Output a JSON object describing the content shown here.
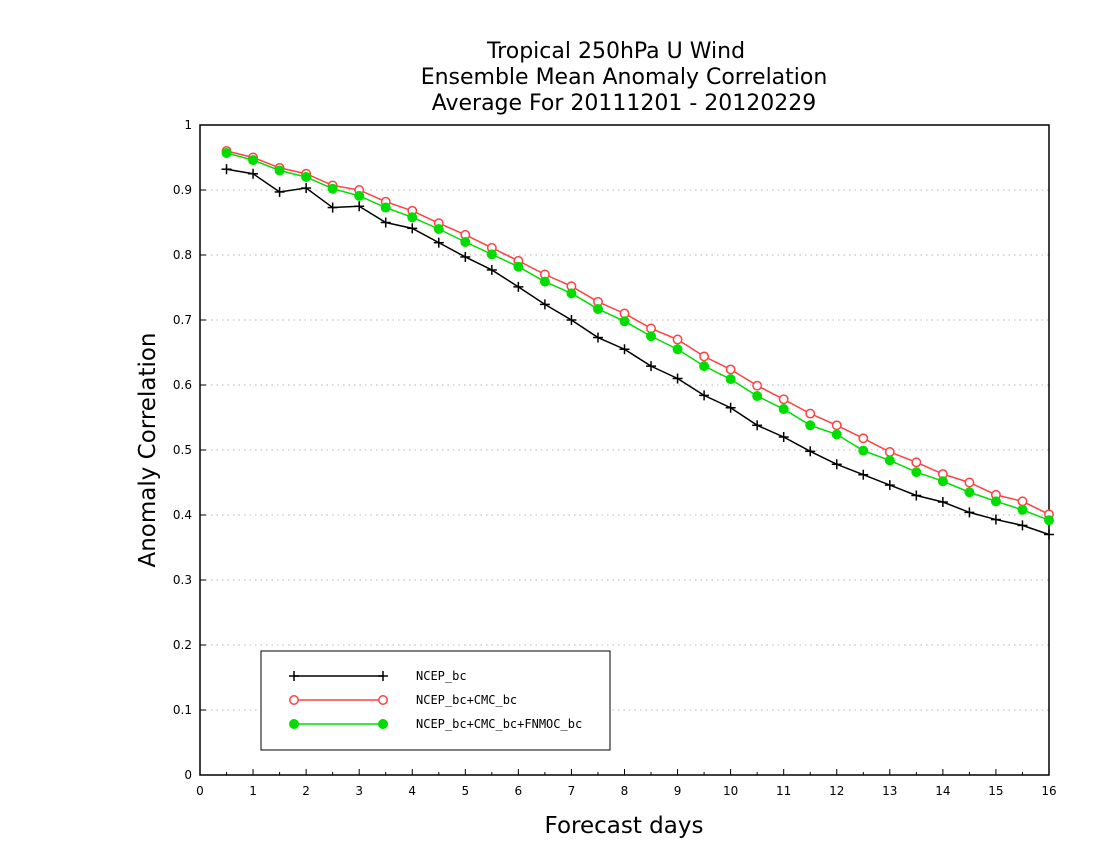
{
  "chart_data": {
    "type": "line",
    "title_lines": [
      "Tropical 250hPa U Wind",
      "Ensemble Mean Anomaly Correlation",
      "Average For 20111201 - 20120229"
    ],
    "xlabel": "Forecast days",
    "ylabel": "Anomaly Correlation",
    "xlim": [
      0,
      16
    ],
    "ylim": [
      0,
      1
    ],
    "xticks": [
      "0",
      "1",
      "2",
      "3",
      "4",
      "5",
      "6",
      "7",
      "8",
      "9",
      "10",
      "11",
      "12",
      "13",
      "14",
      "15",
      "16"
    ],
    "yticks": [
      "0",
      "0.1",
      "0.2",
      "0.3",
      "0.4",
      "0.5",
      "0.6",
      "0.7",
      "0.8",
      "0.9",
      "1"
    ],
    "grid": "horizontal dotted",
    "legend_placement": "bottom-left",
    "x": [
      0.5,
      1,
      1.5,
      2,
      2.5,
      3,
      3.5,
      4,
      4.5,
      5,
      5.5,
      6,
      6.5,
      7,
      7.5,
      8,
      8.5,
      9,
      9.5,
      10,
      10.5,
      11,
      11.5,
      12,
      12.5,
      13,
      13.5,
      14,
      14.5,
      15,
      15.5,
      16
    ],
    "series": [
      {
        "name": "NCEP_bc",
        "color": "#000000",
        "marker": "plus",
        "values": [
          0.932,
          0.925,
          0.897,
          0.903,
          0.873,
          0.875,
          0.85,
          0.841,
          0.819,
          0.797,
          0.777,
          0.751,
          0.724,
          0.7,
          0.673,
          0.655,
          0.629,
          0.61,
          0.584,
          0.565,
          0.538,
          0.52,
          0.498,
          0.478,
          0.462,
          0.446,
          0.43,
          0.42,
          0.404,
          0.393,
          0.384,
          0.37
        ]
      },
      {
        "name": "NCEP_bc+CMC_bc",
        "color": "#ff4040",
        "marker": "open-circle",
        "values": [
          0.96,
          0.95,
          0.934,
          0.925,
          0.907,
          0.9,
          0.882,
          0.868,
          0.849,
          0.831,
          0.811,
          0.791,
          0.77,
          0.752,
          0.728,
          0.71,
          0.687,
          0.67,
          0.644,
          0.624,
          0.599,
          0.578,
          0.556,
          0.538,
          0.518,
          0.497,
          0.481,
          0.463,
          0.45,
          0.431,
          0.421,
          0.401
        ]
      },
      {
        "name": "NCEP_bc+CMC_bc+FNMOC_bc",
        "color": "#00dd00",
        "marker": "filled-circle",
        "values": [
          0.957,
          0.946,
          0.93,
          0.92,
          0.902,
          0.891,
          0.873,
          0.858,
          0.84,
          0.82,
          0.801,
          0.782,
          0.759,
          0.741,
          0.717,
          0.698,
          0.675,
          0.655,
          0.629,
          0.609,
          0.583,
          0.563,
          0.538,
          0.524,
          0.499,
          0.484,
          0.466,
          0.452,
          0.435,
          0.421,
          0.408,
          0.392
        ]
      }
    ]
  }
}
